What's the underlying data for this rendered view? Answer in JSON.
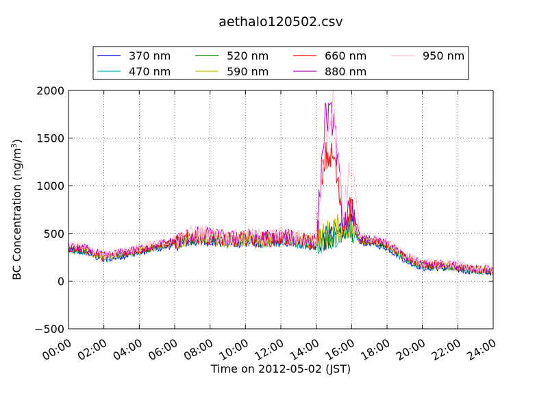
{
  "chart_data": {
    "type": "line",
    "title": "aethalo120502.csv",
    "xlabel": "Time on 2012-05-02 (JST)",
    "ylabel": "BC Concentration (ng/m³)",
    "ylabel_main": "BC Concentration (ng/m",
    "ylabel_sup": "3",
    "ylabel_close": ")",
    "xlim": [
      "00:00",
      "24:00"
    ],
    "ylim": [
      -500,
      2000
    ],
    "xticks": [
      "00:00",
      "02:00",
      "04:00",
      "06:00",
      "08:00",
      "10:00",
      "12:00",
      "14:00",
      "16:00",
      "18:00",
      "20:00",
      "22:00",
      "24:00"
    ],
    "yticks": [
      "−500",
      "0",
      "500",
      "1000",
      "1500",
      "2000"
    ],
    "grid": true,
    "legend_position": "top",
    "series": [
      {
        "name": "370 nm",
        "color": "#0000ff",
        "x": [
          "00:00",
          "01:00",
          "02:00",
          "03:00",
          "04:00",
          "05:00",
          "06:00",
          "07:00",
          "08:00",
          "09:00",
          "10:00",
          "11:00",
          "12:00",
          "13:00",
          "14:00",
          "14:30",
          "15:00",
          "15:30",
          "16:00",
          "16:30",
          "17:00",
          "18:00",
          "19:00",
          "20:00",
          "21:00",
          "22:00",
          "23:00",
          "24:00"
        ],
        "y": [
          320,
          300,
          220,
          260,
          300,
          340,
          380,
          420,
          430,
          400,
          420,
          410,
          420,
          400,
          380,
          450,
          470,
          580,
          580,
          400,
          400,
          350,
          220,
          140,
          140,
          120,
          100,
          90
        ]
      },
      {
        "name": "470 nm",
        "color": "#00bfbf",
        "x": [
          "00:00",
          "01:00",
          "02:00",
          "03:00",
          "04:00",
          "05:00",
          "06:00",
          "07:00",
          "08:00",
          "09:00",
          "10:00",
          "11:00",
          "12:00",
          "13:00",
          "14:00",
          "14:30",
          "15:00",
          "15:30",
          "16:00",
          "16:30",
          "17:00",
          "18:00",
          "19:00",
          "20:00",
          "21:00",
          "22:00",
          "23:00",
          "24:00"
        ],
        "y": [
          330,
          310,
          230,
          270,
          310,
          350,
          390,
          430,
          440,
          410,
          430,
          420,
          430,
          410,
          390,
          460,
          480,
          560,
          560,
          410,
          410,
          360,
          230,
          150,
          150,
          130,
          110,
          95
        ]
      },
      {
        "name": "520 nm",
        "color": "#008000",
        "x": [
          "00:00",
          "01:00",
          "02:00",
          "03:00",
          "04:00",
          "05:00",
          "06:00",
          "07:00",
          "08:00",
          "09:00",
          "10:00",
          "11:00",
          "12:00",
          "13:00",
          "14:00",
          "14:30",
          "15:00",
          "15:30",
          "16:00",
          "16:30",
          "17:00",
          "18:00",
          "19:00",
          "20:00",
          "21:00",
          "22:00",
          "23:00",
          "24:00"
        ],
        "y": [
          340,
          320,
          240,
          280,
          320,
          360,
          400,
          440,
          450,
          420,
          440,
          430,
          440,
          420,
          400,
          470,
          500,
          560,
          560,
          420,
          420,
          370,
          240,
          160,
          160,
          140,
          115,
          100
        ]
      },
      {
        "name": "590 nm",
        "color": "#bfbf00",
        "x": [
          "00:00",
          "01:00",
          "02:00",
          "03:00",
          "04:00",
          "05:00",
          "06:00",
          "07:00",
          "08:00",
          "09:00",
          "10:00",
          "11:00",
          "12:00",
          "13:00",
          "14:00",
          "14:30",
          "15:00",
          "15:30",
          "16:00",
          "16:30",
          "17:00",
          "18:00",
          "19:00",
          "20:00",
          "21:00",
          "22:00",
          "23:00",
          "24:00"
        ],
        "y": [
          345,
          325,
          245,
          285,
          325,
          365,
          405,
          450,
          455,
          425,
          445,
          435,
          445,
          425,
          405,
          480,
          520,
          580,
          580,
          425,
          425,
          375,
          245,
          165,
          165,
          145,
          120,
          105
        ]
      },
      {
        "name": "660 nm",
        "color": "#ff0000",
        "x": [
          "00:00",
          "01:00",
          "02:00",
          "03:00",
          "04:00",
          "05:00",
          "06:00",
          "07:00",
          "08:00",
          "09:00",
          "10:00",
          "11:00",
          "12:00",
          "13:00",
          "14:00",
          "14:30",
          "15:00",
          "15:30",
          "16:00",
          "16:30",
          "17:00",
          "18:00",
          "19:00",
          "20:00",
          "21:00",
          "22:00",
          "23:00",
          "24:00"
        ],
        "y": [
          350,
          330,
          250,
          290,
          330,
          370,
          410,
          460,
          460,
          430,
          450,
          440,
          450,
          430,
          410,
          1300,
          1300,
          620,
          780,
          430,
          430,
          380,
          250,
          170,
          170,
          150,
          125,
          110
        ]
      },
      {
        "name": "880 nm",
        "color": "#bf00bf",
        "x": [
          "00:00",
          "01:00",
          "02:00",
          "03:00",
          "04:00",
          "05:00",
          "06:00",
          "07:00",
          "08:00",
          "09:00",
          "10:00",
          "11:00",
          "12:00",
          "13:00",
          "14:00",
          "14:30",
          "15:00",
          "15:30",
          "16:00",
          "16:30",
          "17:00",
          "18:00",
          "19:00",
          "20:00",
          "21:00",
          "22:00",
          "23:00",
          "24:00"
        ],
        "y": [
          360,
          340,
          260,
          300,
          340,
          380,
          420,
          480,
          480,
          440,
          460,
          450,
          470,
          440,
          420,
          1720,
          1700,
          650,
          700,
          440,
          440,
          390,
          260,
          180,
          180,
          160,
          130,
          115
        ]
      },
      {
        "name": "950 nm",
        "color": "#ffc0cb",
        "x": [
          "00:00",
          "01:00",
          "02:00",
          "03:00",
          "04:00",
          "05:00",
          "06:00",
          "07:00",
          "08:00",
          "09:00",
          "10:00",
          "11:00",
          "12:00",
          "13:00",
          "14:00",
          "14:30",
          "15:00",
          "15:30",
          "16:00",
          "16:30",
          "17:00",
          "18:00",
          "19:00",
          "20:00",
          "21:00",
          "22:00",
          "23:00",
          "24:00"
        ],
        "y": [
          370,
          350,
          270,
          310,
          350,
          390,
          430,
          500,
          500,
          450,
          470,
          460,
          480,
          450,
          430,
          1500,
          1940,
          700,
          1250,
          450,
          450,
          400,
          270,
          190,
          190,
          170,
          135,
          120
        ]
      }
    ]
  }
}
